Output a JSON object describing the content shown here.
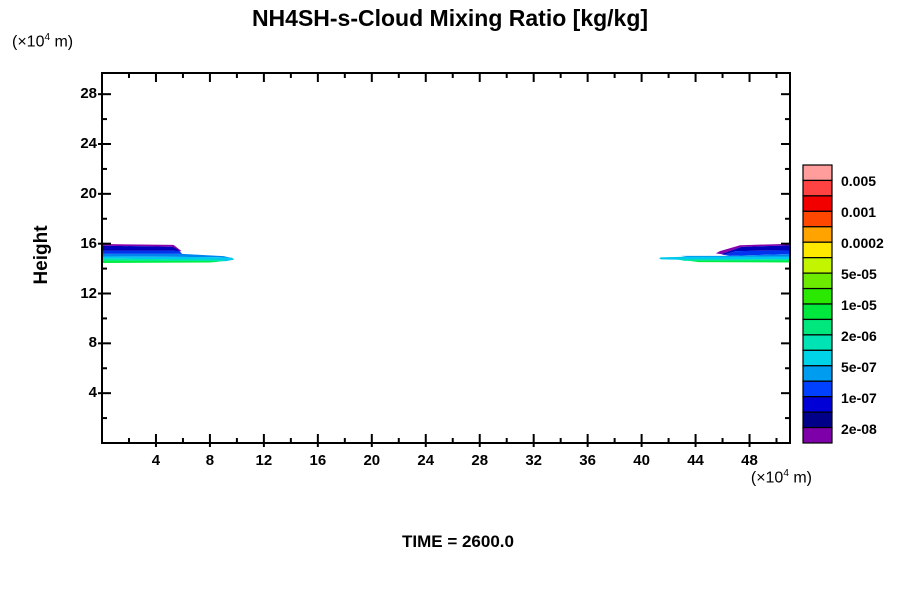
{
  "header": {
    "title": "NH4SH-s-Cloud Mixing Ratio [kg/kg]"
  },
  "time_label": "TIME = 2600.0",
  "y_axis_title": "Height",
  "y_unit": {
    "pre": "(×10",
    "sup": "4",
    "post": " m)"
  },
  "x_unit": {
    "pre": "(×10",
    "sup": "4",
    "post": " m)"
  },
  "chart_data": {
    "type": "filled_contour",
    "title": "NH4SH-s-Cloud Mixing Ratio [kg/kg]",
    "xlabel": "(x10^4 m)",
    "ylabel": "Height (x10^4 m)",
    "time": 2600.0,
    "grid": false,
    "xlim": [
      0,
      51
    ],
    "ylim": [
      0,
      29.7
    ],
    "x_major_ticks": [
      4,
      8,
      12,
      16,
      20,
      24,
      28,
      32,
      36,
      40,
      44,
      48
    ],
    "x_minor_ticks": [
      2,
      6,
      10,
      14,
      18,
      22,
      26,
      30,
      34,
      38,
      42,
      46,
      50
    ],
    "y_major_ticks": [
      4,
      8,
      12,
      16,
      20,
      24,
      28
    ],
    "y_minor_ticks": [
      2,
      6,
      10,
      14,
      18,
      22,
      26
    ],
    "colorbar": {
      "position": "right",
      "labels_top_to_bottom": [
        "0.005",
        "0.001",
        "0.0002",
        "5e-05",
        "1e-05",
        "2e-06",
        "5e-07",
        "1e-07",
        "2e-08"
      ],
      "cell_colors_top_to_bottom": [
        "#ff9c9c",
        "#ff4242",
        "#f20000",
        "#ff4700",
        "#ffa300",
        "#ffe800",
        "#c3f500",
        "#6ceb00",
        "#2ae800",
        "#00e83d",
        "#00e87d",
        "#00e3b5",
        "#00d2e8",
        "#009cf0",
        "#0041ff",
        "#0000d6",
        "#000089",
        "#7d00a8"
      ]
    },
    "features": [
      {
        "name": "left-cloud-band",
        "x_range": [
          0,
          9.8
        ],
        "height_range": [
          14.45,
          15.97
        ],
        "layers": [
          {
            "level": "2e-08",
            "color": "#8800aa",
            "points": [
              [
                0,
                15.97
              ],
              [
                5.3,
                15.9
              ],
              [
                5.9,
                15.4
              ],
              [
                5.5,
                15.33
              ],
              [
                5.2,
                15.76
              ],
              [
                0,
                15.84
              ]
            ]
          },
          {
            "level": "1e-07",
            "color": "#0000bb",
            "points": [
              [
                0,
                15.84
              ],
              [
                5.2,
                15.76
              ],
              [
                5.6,
                15.55
              ],
              [
                5.7,
                15.42
              ],
              [
                0,
                15.42
              ]
            ]
          },
          {
            "level": "2e-07",
            "color": "#0033ee",
            "points": [
              [
                0,
                15.42
              ],
              [
                5.7,
                15.42
              ],
              [
                5.95,
                15.18
              ],
              [
                0,
                15.18
              ]
            ]
          },
          {
            "level": "5e-07",
            "color": "#0085ee",
            "points": [
              [
                0,
                15.18
              ],
              [
                5.95,
                15.18
              ],
              [
                9.0,
                15.0
              ],
              [
                9.65,
                14.85
              ],
              [
                8.5,
                14.92
              ],
              [
                0,
                14.97
              ]
            ]
          },
          {
            "level": "1e-06",
            "color": "#00c8ee",
            "points": [
              [
                0,
                14.97
              ],
              [
                8.5,
                14.92
              ],
              [
                9.65,
                14.87
              ],
              [
                9.8,
                14.72
              ],
              [
                9.2,
                14.6
              ],
              [
                8.6,
                14.68
              ],
              [
                0,
                14.81
              ]
            ]
          },
          {
            "level": "2e-06",
            "color": "#00e8a8",
            "points": [
              [
                0,
                14.81
              ],
              [
                8.6,
                14.72
              ],
              [
                9.2,
                14.6
              ],
              [
                8.6,
                14.56
              ],
              [
                0,
                14.65
              ]
            ]
          },
          {
            "level": "1e-05",
            "color": "#00ee44",
            "points": [
              [
                0,
                14.65
              ],
              [
                8.0,
                14.6
              ],
              [
                8.7,
                14.55
              ],
              [
                8.0,
                14.49
              ],
              [
                0,
                14.45
              ]
            ]
          }
        ]
      },
      {
        "name": "right-cloud-band",
        "x_range": [
          41.3,
          51
        ],
        "height_range": [
          14.49,
          15.99
        ],
        "layers": [
          {
            "level": "2e-08",
            "color": "#8800aa",
            "points": [
              [
                45.5,
                15.22
              ],
              [
                45.8,
                15.4
              ],
              [
                47.3,
                15.88
              ],
              [
                51,
                15.99
              ],
              [
                51,
                15.86
              ],
              [
                47.4,
                15.74
              ],
              [
                45.9,
                15.16
              ]
            ]
          },
          {
            "level": "1e-07",
            "color": "#0000bb",
            "points": [
              [
                45.9,
                15.16
              ],
              [
                47.4,
                15.74
              ],
              [
                51,
                15.86
              ],
              [
                51,
                15.45
              ],
              [
                47.0,
                15.4
              ],
              [
                46.1,
                15.1
              ]
            ]
          },
          {
            "level": "2e-07",
            "color": "#0033ee",
            "points": [
              [
                46.1,
                15.1
              ],
              [
                47.0,
                15.4
              ],
              [
                51,
                15.45
              ],
              [
                51,
                15.17
              ],
              [
                46.5,
                15.02
              ]
            ]
          },
          {
            "level": "5e-07",
            "color": "#0085ee",
            "points": [
              [
                42.9,
                15.02
              ],
              [
                46.5,
                15.02
              ],
              [
                51,
                15.17
              ],
              [
                51,
                14.97
              ],
              [
                43.5,
                14.92
              ]
            ]
          },
          {
            "level": "1e-06",
            "color": "#00c8ee",
            "points": [
              [
                41.4,
                14.9
              ],
              [
                43.5,
                14.96
              ],
              [
                51,
                14.97
              ],
              [
                51,
                14.77
              ],
              [
                43.2,
                14.7
              ],
              [
                41.45,
                14.74
              ],
              [
                41.3,
                14.82
              ]
            ]
          },
          {
            "level": "2e-06",
            "color": "#00e8a8",
            "points": [
              [
                42.6,
                14.74
              ],
              [
                51,
                14.77
              ],
              [
                51,
                14.65
              ],
              [
                43.2,
                14.62
              ]
            ]
          },
          {
            "level": "1e-05",
            "color": "#00ee44",
            "points": [
              [
                43.4,
                14.64
              ],
              [
                51,
                14.65
              ],
              [
                51,
                14.49
              ],
              [
                44.2,
                14.52
              ]
            ]
          }
        ]
      }
    ]
  }
}
